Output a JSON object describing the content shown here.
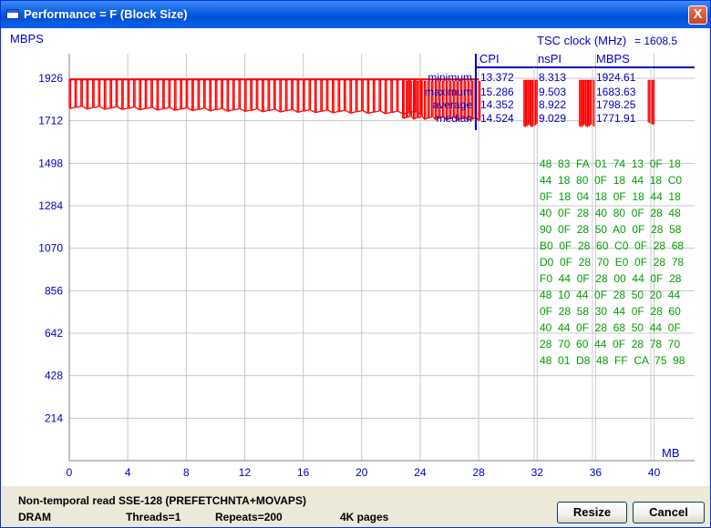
{
  "window": {
    "title": "Performance = F (Block Size)",
    "close_label": "X"
  },
  "chart_data": {
    "type": "line",
    "title": "",
    "ylabel": "MBPS",
    "xlabel": "MB",
    "xlim": [
      0,
      44
    ],
    "ylim": [
      0,
      2000
    ],
    "grid": true,
    "x_ticks": [
      0,
      4,
      8,
      12,
      16,
      20,
      24,
      28,
      32,
      36,
      40
    ],
    "y_ticks": [
      214,
      428,
      642,
      856,
      1070,
      1284,
      1498,
      1712,
      1926
    ],
    "series": [
      {
        "color": "#ff0000",
        "segments": [
          {
            "x_start": 0,
            "x_end": 24,
            "y_start": 1780,
            "y_end": 1752,
            "spike_high": 1915,
            "spike_every": 0.4
          },
          {
            "x_start": 22.8,
            "x_end": 28,
            "y_start": 1730,
            "y_end": 1720,
            "spike_high": 1910,
            "spike_every": 0.25
          },
          {
            "x_start": 31.1,
            "x_end": 31.9,
            "y_start": 1690,
            "y_end": 1690,
            "spike_high": 1915,
            "spike_every": 0.15
          },
          {
            "x_start": 34.9,
            "x_end": 35.8,
            "y_start": 1690,
            "y_end": 1690,
            "spike_high": 1915,
            "spike_every": 0.15
          },
          {
            "x_start": 39.6,
            "x_end": 39.9,
            "y_start": 1710,
            "y_end": 1690,
            "spike_high": 1915,
            "spike_every": 0.15
          }
        ],
        "avg_line": 1920
      }
    ]
  },
  "tsc": {
    "label": "TSC clock (MHz)",
    "value": "= 1608.5"
  },
  "stats": {
    "headers": [
      "CPI",
      "nsPI",
      "MBPS"
    ],
    "rows": [
      {
        "label": "minimum",
        "cpi": "13.372",
        "nspi": "8.313",
        "mbps": "1924.61"
      },
      {
        "label": "maximum",
        "cpi": "15.286",
        "nspi": "9.503",
        "mbps": "1683.63"
      },
      {
        "label": "average",
        "cpi": "14.352",
        "nspi": "8.922",
        "mbps": "1798.25"
      },
      {
        "label": "median",
        "cpi": "14.524",
        "nspi": "9.029",
        "mbps": "1771.91"
      }
    ]
  },
  "hex_dump": [
    "48  83  FA  01  74  13  0F  18",
    "44  18  80  0F  18  44  18  C0",
    "0F  18  04  18  0F  18  44  18",
    "40  0F  28  40  80  0F  28  48",
    "90  0F  28  50  A0  0F  28  58",
    "B0  0F  28  60  C0  0F  28  68",
    "D0  0F  28  70  E0  0F  28  78",
    "F0  44  0F  28  00  44  0F  28",
    "48  10  44  0F  28  50  20  44",
    "0F  28  58  30  44  0F  28  60",
    "40  44  0F  28  68  50  44  0F",
    "28  70  60  44  0F  28  78  70",
    "48  01  D8  48  FF  CA  75  98"
  ],
  "status": {
    "method": "Non-temporal read SSE-128 (PREFETCHNTA+MOVAPS)",
    "memory": "DRAM",
    "threads": "Threads=1",
    "repeats": "Repeats=200",
    "pages": "4K pages"
  },
  "buttons": {
    "resize": "Resize",
    "cancel": "Cancel"
  },
  "colors": {
    "axis_text": "#0000c0",
    "plot": "#ff0000",
    "hex": "#00a000",
    "title_bar": "#0a5ce0"
  }
}
